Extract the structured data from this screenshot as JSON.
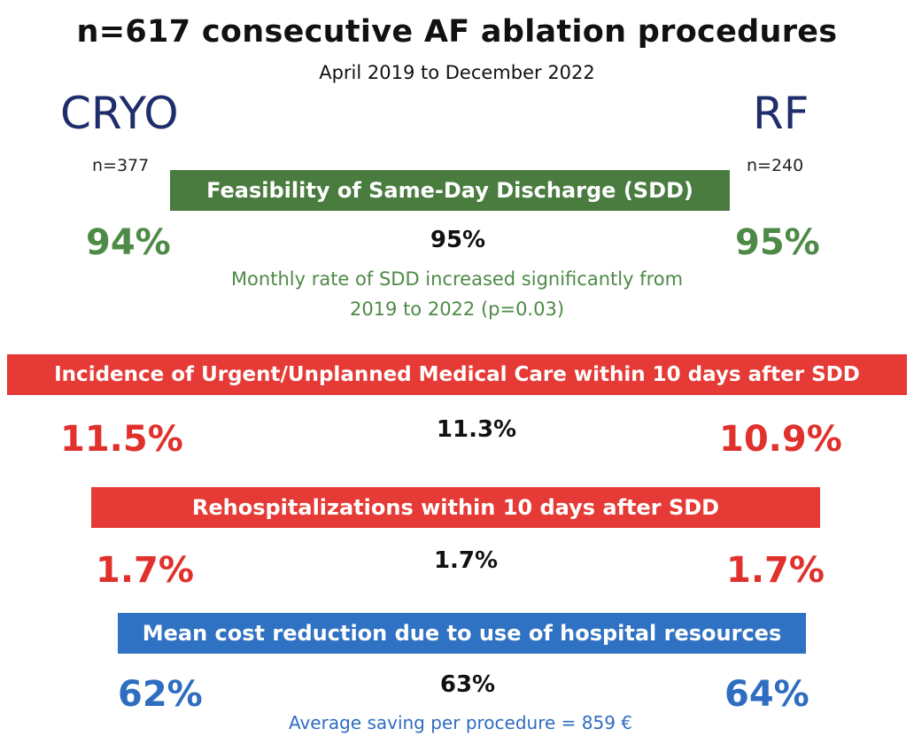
{
  "title": "n=617 consecutive AF ablation procedures",
  "subtitle": "April 2019 to December 2022",
  "arms": {
    "left": {
      "label": "CRYO",
      "n": "n=377"
    },
    "right": {
      "label": "RF",
      "n": "n=240"
    }
  },
  "sections": {
    "sdd": {
      "heading": "Feasibility of Same-Day Discharge (SDD)",
      "cryo": "94%",
      "overall": "95%",
      "rf": "95%",
      "note_line1": "Monthly rate of SDD increased significantly from",
      "note_line2": "2019 to 2022 (p=0.03)"
    },
    "urgent_care": {
      "heading": "Incidence of Urgent/Unplanned Medical Care within 10 days after SDD",
      "cryo": "11.5%",
      "overall": "11.3%",
      "rf": "10.9%"
    },
    "rehosp": {
      "heading": "Rehospitalizations within 10 days after SDD",
      "cryo": "1.7%",
      "overall": "1.7%",
      "rf": "1.7%"
    },
    "cost": {
      "heading": "Mean cost reduction due to use of hospital resources",
      "cryo": "62%",
      "overall": "63%",
      "rf": "64%",
      "note": "Average saving per procedure = 859 €"
    }
  },
  "colors": {
    "green": "#4a7c40",
    "red": "#e53a35",
    "blue": "#2f72c3",
    "navy": "#1f2d6b"
  }
}
